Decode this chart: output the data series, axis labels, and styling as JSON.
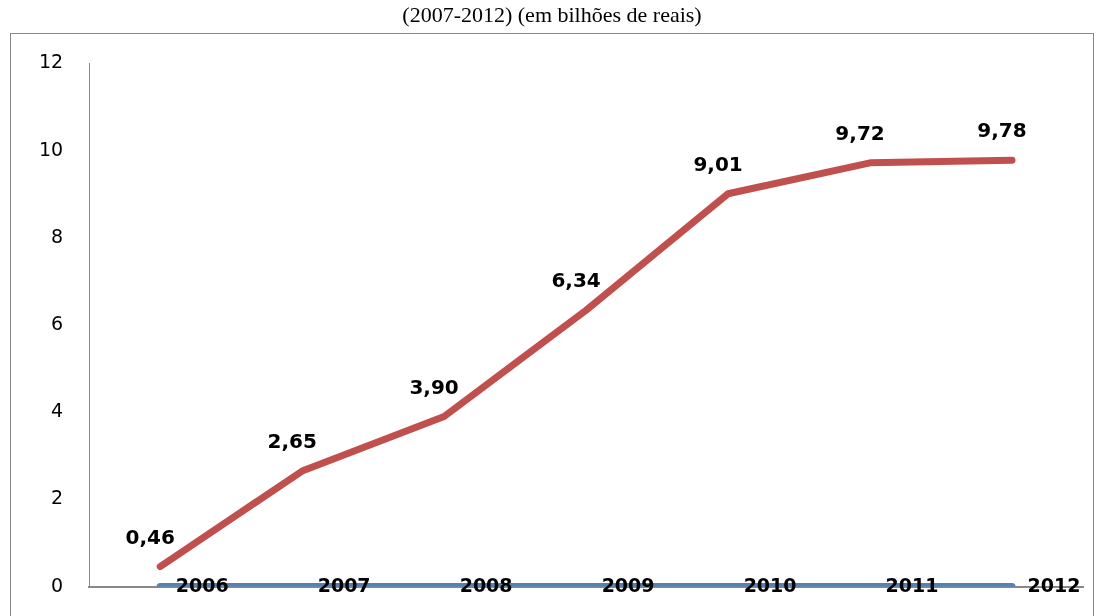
{
  "chart_data": {
    "type": "line",
    "title": "(2007-2012) (em bilhões de reais)",
    "categories": [
      "2006",
      "2007",
      "2008",
      "2009",
      "2010",
      "2011",
      "2012"
    ],
    "series": [
      {
        "color": "#4f81bd",
        "values": [
          0,
          0,
          0,
          0,
          0,
          0,
          0
        ]
      },
      {
        "color": "#c0504d",
        "values": [
          0.46,
          2.65,
          3.9,
          6.34,
          9.01,
          9.72,
          9.78
        ],
        "value_labels": [
          "0,46",
          "2,65",
          "3,90",
          "6,34",
          "9,01",
          "9,72",
          "9,78"
        ]
      }
    ],
    "ylim": [
      0,
      12
    ],
    "yticks": [
      0,
      2,
      4,
      6,
      8,
      10,
      12
    ],
    "grid": false,
    "legend": false,
    "marker": "none",
    "line_style": "solid"
  }
}
